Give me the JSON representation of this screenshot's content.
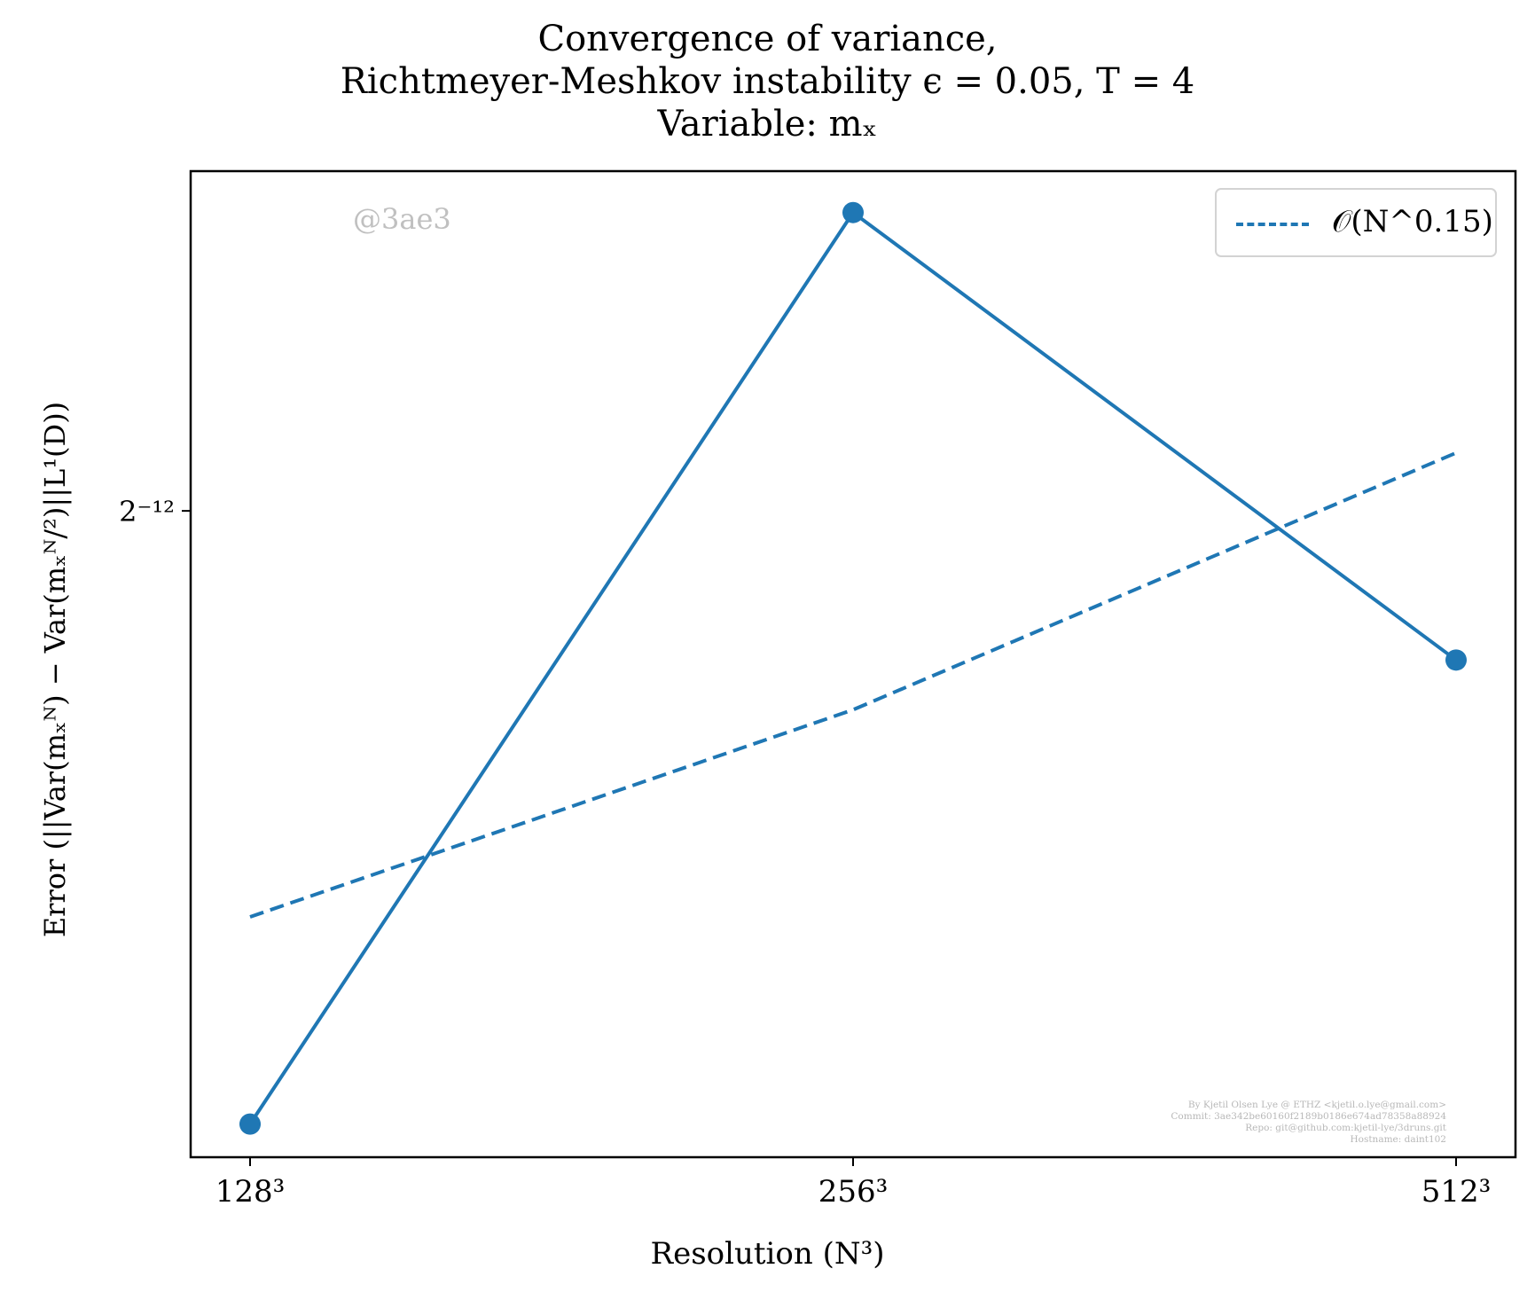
{
  "title": {
    "line1": "Convergence of variance,",
    "line2": "Richtmeyer-Meshkov instability ϵ = 0.05, T = 4",
    "line3": "Variable: mₓ"
  },
  "watermark": "@3ae3",
  "credits": {
    "line1": "By Kjetil Olsen Lye @ ETHZ <kjetil.o.lye@gmail.com>",
    "line2": "Commit: 3ae342be60160f2189b0186e674ad78358a88924",
    "line3": "Repo: git@github.com:kjetil-lye/3druns.git",
    "line4": "Hostname: daint102"
  },
  "colors": {
    "series": "#1f77b4",
    "axes": "#000000",
    "legend_border": "#d3d3d3"
  },
  "chart_data": {
    "type": "line",
    "title": "Convergence of variance, Richtmeyer-Meshkov instability ϵ = 0.05, T = 4, Variable: mₓ",
    "xlabel": "Resolution (N³)",
    "ylabel": "Error (||Var(mₓᴺ) − Var(mₓᴺ/²)||L¹(D))",
    "x_scale": "log2",
    "y_scale": "log2",
    "x": [
      128,
      256,
      512
    ],
    "x_tick_labels": [
      "128³",
      "256³",
      "512³"
    ],
    "y_ticks": [
      {
        "value_log2": -12,
        "label": "2⁻¹²"
      }
    ],
    "ylim_log2": [
      -12.78,
      -11.59
    ],
    "legend": {
      "position": "upper right",
      "entries": [
        "𝒪(N^0.15)"
      ]
    },
    "grid": false,
    "series": [
      {
        "style": "solid",
        "marker": "circle",
        "values_log2": [
          -12.74,
          -11.64,
          -12.18
        ]
      },
      {
        "name": "𝒪(N^0.15)",
        "style": "dashed",
        "marker": "none",
        "values_log2": [
          -12.49,
          -12.24,
          -11.93
        ]
      }
    ]
  }
}
